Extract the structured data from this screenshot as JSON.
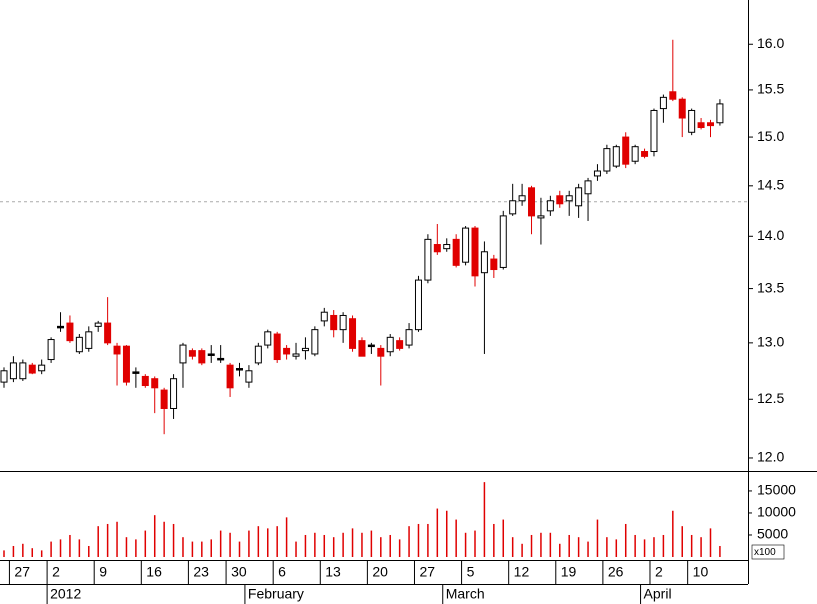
{
  "chart_data": [
    {
      "type": "candlestick",
      "categories": [
        null,
        "27",
        null,
        null,
        null,
        "2",
        null,
        null,
        null,
        null,
        "9",
        null,
        null,
        null,
        null,
        "16",
        null,
        null,
        null,
        null,
        "23",
        null,
        null,
        null,
        "30",
        null,
        null,
        null,
        null,
        "6",
        null,
        null,
        null,
        null,
        "13",
        null,
        null,
        null,
        null,
        "20",
        null,
        null,
        null,
        null,
        "27",
        null,
        null,
        null,
        null,
        "5",
        null,
        null,
        null,
        null,
        "12",
        null,
        null,
        null,
        null,
        "19",
        null,
        null,
        null,
        null,
        "26",
        null,
        null,
        null,
        null,
        "2",
        null,
        null,
        null,
        "10",
        null,
        null,
        null
      ],
      "month_categories": [
        null,
        null,
        null,
        null,
        null,
        "2012",
        null,
        null,
        null,
        null,
        null,
        null,
        null,
        null,
        null,
        null,
        null,
        null,
        null,
        null,
        null,
        null,
        null,
        null,
        null,
        null,
        "February",
        null,
        null,
        null,
        null,
        null,
        null,
        null,
        null,
        null,
        null,
        null,
        null,
        null,
        null,
        null,
        null,
        null,
        null,
        null,
        null,
        "March",
        null,
        null,
        null,
        null,
        null,
        null,
        null,
        null,
        null,
        null,
        null,
        null,
        null,
        null,
        null,
        null,
        null,
        null,
        null,
        null,
        "April",
        null,
        null,
        null,
        null,
        null,
        null,
        null
      ],
      "open": [
        12.65,
        12.68,
        12.68,
        12.8,
        12.75,
        12.85,
        13.15,
        13.18,
        12.92,
        12.95,
        13.15,
        13.18,
        12.97,
        12.97,
        12.74,
        12.7,
        12.68,
        12.58,
        12.42,
        12.82,
        12.93,
        12.93,
        12.9,
        12.86,
        12.8,
        12.77,
        12.65,
        12.82,
        12.98,
        13.08,
        12.95,
        12.88,
        12.93,
        12.9,
        13.2,
        13.25,
        13.12,
        13.22,
        13.02,
        12.98,
        12.95,
        12.92,
        13.02,
        12.98,
        13.12,
        13.58,
        13.92,
        13.88,
        13.97,
        13.75,
        14.08,
        13.65,
        13.78,
        13.7,
        14.22,
        14.35,
        14.48,
        14.18,
        14.25,
        14.4,
        14.35,
        14.3,
        14.42,
        14.6,
        14.65,
        14.7,
        15.0,
        14.75,
        14.85,
        14.85,
        15.3,
        15.48,
        15.4,
        15.05,
        15.15,
        15.15,
        15.15
      ],
      "high": [
        12.78,
        12.88,
        12.85,
        12.82,
        12.85,
        13.05,
        13.28,
        13.25,
        13.08,
        13.15,
        13.2,
        13.42,
        13.0,
        12.98,
        12.78,
        12.72,
        12.7,
        12.6,
        12.72,
        13.0,
        12.95,
        12.95,
        12.98,
        12.98,
        12.82,
        12.82,
        12.8,
        13.0,
        13.12,
        13.1,
        12.98,
        13.0,
        13.05,
        13.15,
        13.32,
        13.3,
        13.28,
        13.25,
        13.05,
        13.0,
        12.98,
        13.08,
        13.05,
        13.18,
        13.62,
        14.02,
        14.12,
        13.98,
        14.02,
        14.1,
        14.1,
        13.95,
        13.82,
        14.25,
        14.52,
        14.52,
        14.5,
        14.38,
        14.4,
        14.45,
        14.45,
        14.52,
        14.58,
        14.72,
        14.92,
        14.92,
        15.05,
        14.92,
        14.88,
        15.3,
        15.45,
        16.05,
        15.42,
        15.3,
        15.2,
        15.18,
        15.4
      ],
      "low": [
        12.6,
        12.65,
        12.66,
        12.72,
        12.72,
        12.82,
        13.1,
        13.0,
        12.9,
        12.92,
        13.1,
        12.98,
        12.62,
        12.62,
        12.6,
        12.6,
        12.38,
        12.2,
        12.33,
        12.6,
        12.85,
        12.8,
        12.82,
        12.82,
        12.52,
        12.7,
        12.6,
        12.8,
        12.95,
        12.82,
        12.85,
        12.85,
        12.85,
        12.88,
        13.15,
        13.05,
        13.0,
        12.92,
        12.88,
        12.9,
        12.62,
        12.88,
        12.93,
        12.95,
        13.1,
        13.55,
        13.82,
        13.85,
        13.7,
        13.72,
        13.52,
        12.9,
        13.6,
        13.68,
        14.2,
        14.3,
        14.02,
        13.92,
        14.2,
        14.28,
        14.2,
        14.18,
        14.15,
        14.55,
        14.62,
        14.68,
        14.68,
        14.72,
        14.78,
        14.8,
        15.15,
        15.38,
        15.0,
        15.02,
        15.08,
        15.0,
        15.12
      ],
      "close": [
        12.75,
        12.82,
        12.82,
        12.73,
        12.8,
        13.03,
        13.15,
        13.02,
        13.05,
        13.1,
        13.18,
        13.0,
        12.9,
        12.65,
        12.74,
        12.62,
        12.6,
        12.42,
        12.68,
        12.98,
        12.88,
        12.82,
        12.9,
        12.86,
        12.6,
        12.77,
        12.75,
        12.97,
        13.1,
        12.85,
        12.9,
        12.9,
        12.95,
        13.12,
        13.28,
        13.12,
        13.25,
        12.95,
        12.88,
        12.98,
        12.88,
        13.05,
        12.95,
        13.12,
        13.58,
        13.97,
        13.85,
        13.92,
        13.72,
        14.08,
        13.62,
        13.85,
        13.68,
        14.2,
        14.35,
        14.4,
        14.2,
        14.2,
        14.35,
        14.32,
        14.4,
        14.48,
        14.55,
        14.65,
        14.88,
        14.9,
        14.72,
        14.9,
        14.8,
        15.28,
        15.42,
        15.4,
        15.2,
        15.28,
        15.1,
        15.12,
        15.35
      ],
      "up_color": "#ffffff",
      "down_color": "#e00000",
      "flat_color": "#000000",
      "ylim": [
        11.9,
        16.5
      ],
      "log": true,
      "yticks": [
        {
          "value": 12,
          "label": "12.0"
        },
        12.5,
        {
          "value": 13,
          "label": "13.0"
        },
        13.5,
        {
          "value": 14,
          "label": "14.0"
        },
        14.5,
        {
          "value": 15,
          "label": "15.0"
        },
        15.5,
        {
          "value": 16,
          "label": "16.0"
        }
      ],
      "reference_line": 14.34
    },
    {
      "type": "bar",
      "values": [
        1500,
        2500,
        3000,
        2000,
        1500,
        3500,
        4000,
        5000,
        4000,
        2500,
        7000,
        7500,
        8000,
        4500,
        4000,
        6000,
        9500,
        8000,
        7500,
        4500,
        3500,
        3500,
        4000,
        6000,
        5500,
        3500,
        6000,
        7000,
        6500,
        7000,
        9000,
        3500,
        5000,
        5500,
        5000,
        4500,
        5500,
        6500,
        5500,
        6000,
        4500,
        5000,
        4000,
        7000,
        7500,
        7500,
        11000,
        10500,
        8500,
        5500,
        6000,
        17000,
        7500,
        8500,
        4500,
        3000,
        5000,
        5500,
        5500,
        3000,
        5000,
        4500,
        3500,
        8500,
        4500,
        4000,
        7500,
        5000,
        4000,
        4500,
        5000,
        10500,
        7000,
        5000,
        4500,
        6500,
        2500
      ],
      "color": "#e00000",
      "ylim": [
        0,
        19300
      ],
      "yticks": [
        5000,
        10000,
        15000
      ],
      "multiplier_label": "x100"
    }
  ]
}
